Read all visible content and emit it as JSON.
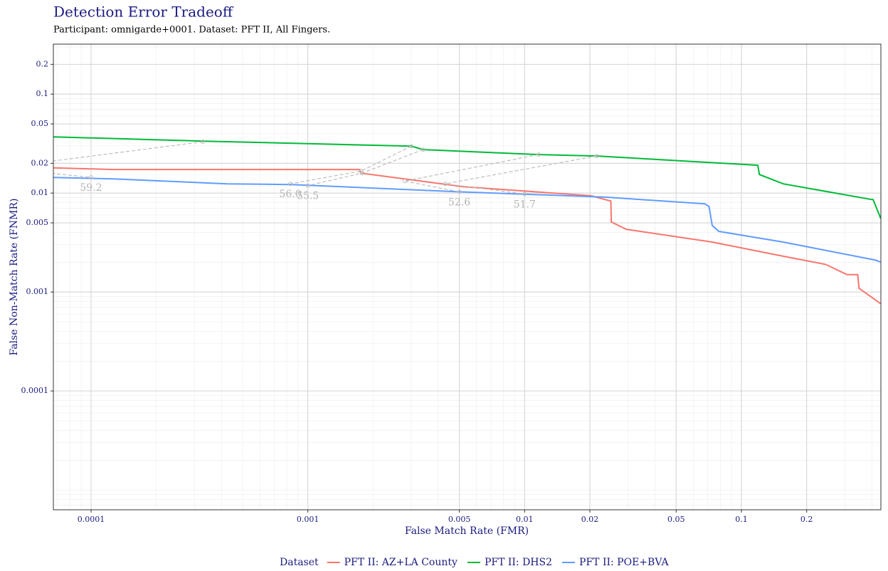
{
  "chart_data": {
    "type": "line",
    "title": "Detection Error Tradeoff",
    "subtitle": "Participant: omnigarde+0001. Dataset: PFT II, All Fingers.",
    "x_label": "False Match Rate (FMR)",
    "y_label": "False Non-Match Rate (FNMR)",
    "xscale": "log",
    "yscale": "log",
    "xlim": [
      6.7e-05,
      0.44
    ],
    "ylim": [
      6.3e-06,
      0.32
    ],
    "xticks": [
      0.0001,
      0.001,
      0.005,
      0.01,
      0.02,
      0.05,
      0.1,
      0.2
    ],
    "yticks": [
      0.0001,
      0.001,
      0.005,
      0.01,
      0.02,
      0.05,
      0.1,
      0.2
    ],
    "grid": true,
    "minor_grid": true,
    "legend_title": "Dataset",
    "legend_position": "bottom",
    "series": [
      {
        "name": "PFT II: AZ+LA County",
        "color": "#f8766d",
        "x": [
          6.7e-05,
          0.000127,
          0.00173,
          0.00176,
          0.0052,
          0.0202,
          0.025,
          0.0251,
          0.0295,
          0.0734,
          0.156,
          0.245,
          0.307,
          0.344,
          0.349,
          0.44
        ],
        "values": [
          0.018,
          0.0173,
          0.0173,
          0.0159,
          0.0116,
          0.0094,
          0.0083,
          0.0051,
          0.0043,
          0.0032,
          0.0023,
          0.0019,
          0.0015,
          0.0015,
          0.00109,
          0.00076
        ]
      },
      {
        "name": "PFT II: DHS2",
        "color": "#00ba38",
        "x": [
          6.7e-05,
          0.000328,
          0.003,
          0.0034,
          0.0116,
          0.0215,
          0.119,
          0.121,
          0.156,
          0.4,
          0.405,
          0.44
        ],
        "values": [
          0.037,
          0.0335,
          0.0298,
          0.0275,
          0.0245,
          0.0237,
          0.0191,
          0.0154,
          0.0124,
          0.0086,
          0.0086,
          0.0055
        ]
      },
      {
        "name": "PFT II: POE+BVA",
        "color": "#619cff",
        "x": [
          6.7e-05,
          0.000127,
          0.000427,
          0.00084,
          0.005,
          0.0235,
          0.0679,
          0.0709,
          0.0734,
          0.0788,
          0.156,
          0.416,
          0.44
        ],
        "values": [
          0.0144,
          0.0139,
          0.0124,
          0.0122,
          0.0103,
          0.0091,
          0.0078,
          0.0073,
          0.0047,
          0.0041,
          0.0032,
          0.0021,
          0.002
        ]
      }
    ],
    "annotations": [
      {
        "label": "59.2",
        "x": [
          0.000328,
          3.8e-05,
          0.0001
        ],
        "y": [
          0.033,
          0.018,
          0.0144
        ]
      },
      {
        "label": "56.0",
        "x": [
          0.003,
          0.00176,
          0.00083
        ],
        "y": [
          0.0298,
          0.0167,
          0.0124
        ]
      },
      {
        "label": "55.5",
        "x": [
          0.0034,
          0.00178,
          0.001
        ],
        "y": [
          0.0275,
          0.0159,
          0.0119
        ]
      },
      {
        "label": "52.6",
        "x": [
          0.0116,
          0.0028,
          0.005
        ],
        "y": [
          0.0245,
          0.0132,
          0.0103
        ]
      },
      {
        "label": "51.7",
        "x": [
          0.0215,
          0.0043,
          0.01
        ],
        "y": [
          0.0237,
          0.0124,
          0.0098
        ]
      }
    ]
  }
}
